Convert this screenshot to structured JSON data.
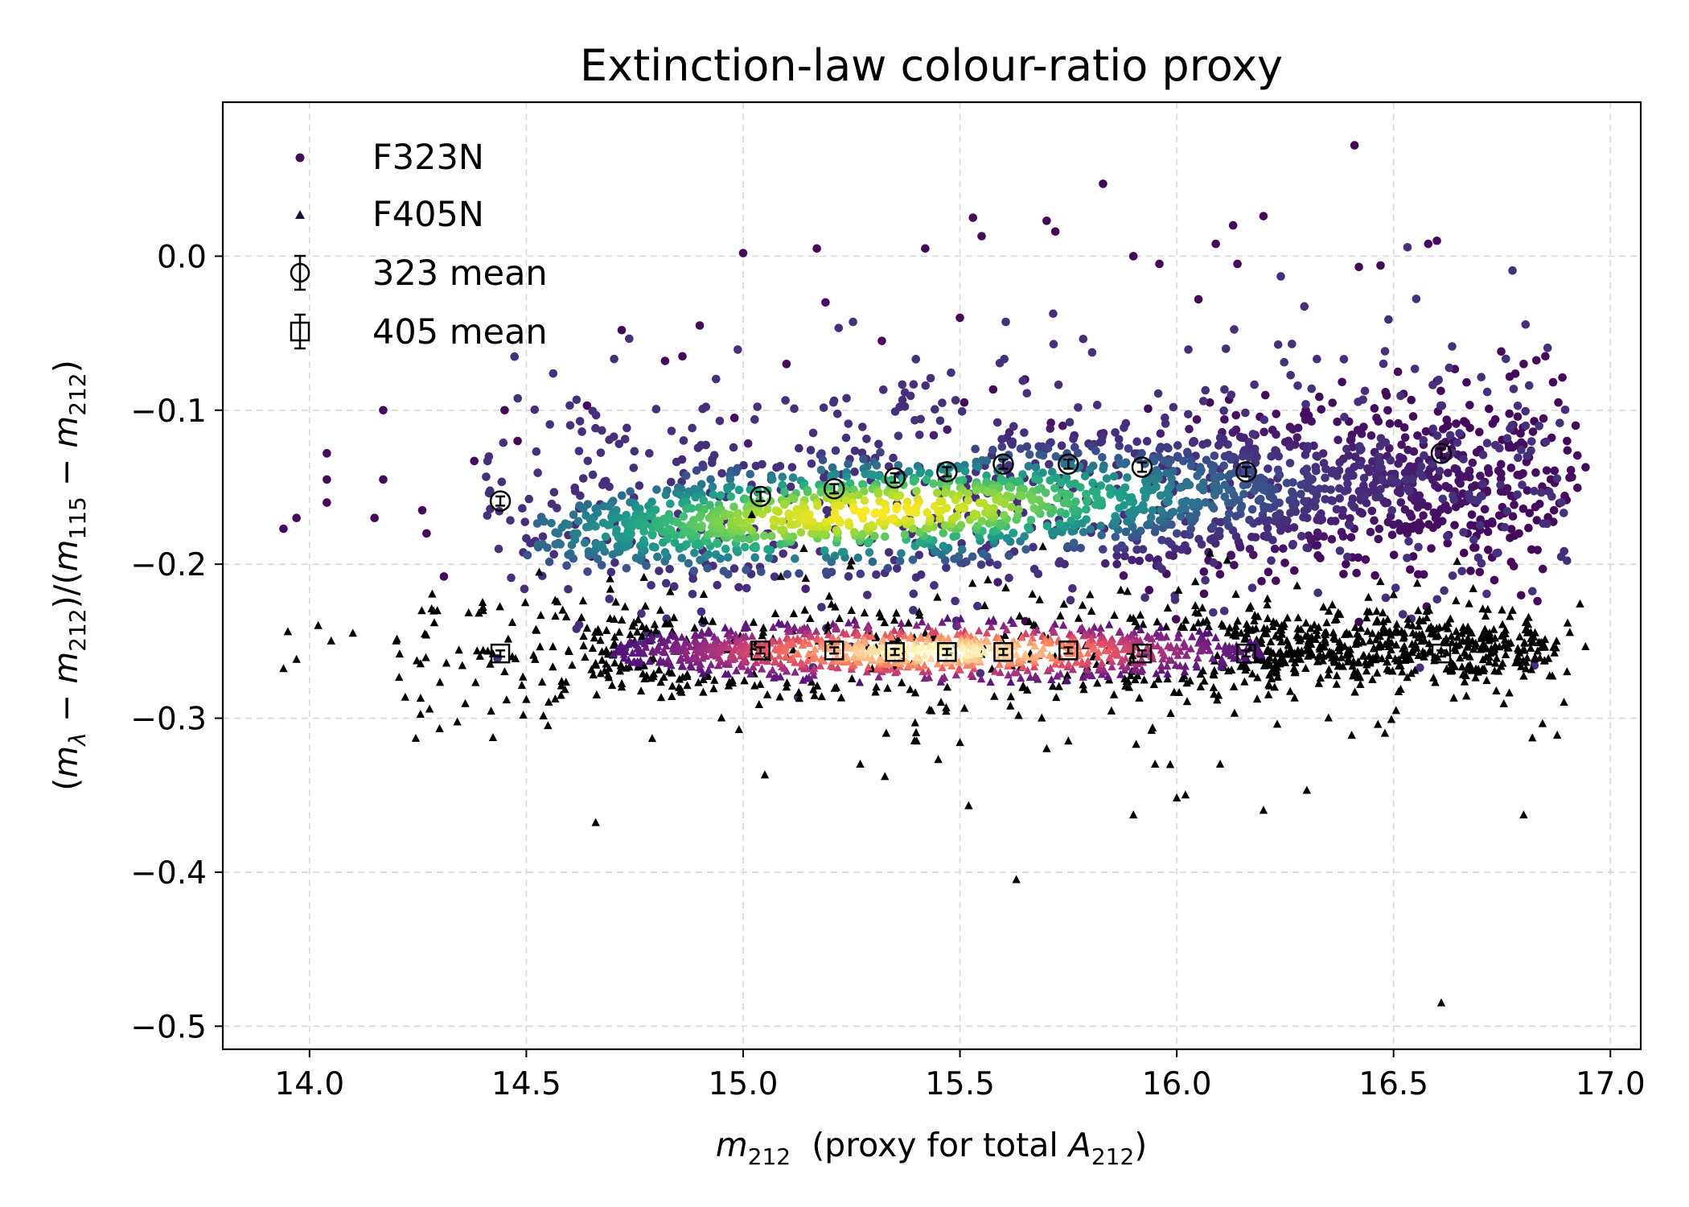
{
  "chart_data": {
    "type": "scatter",
    "title": "Extinction-law colour-ratio proxy",
    "xlabel": "m212  (proxy for total A212)",
    "ylabel": "(mλ − m212)/(m115 − m212)",
    "xlim": [
      13.8,
      17.07
    ],
    "ylim": [
      -0.515,
      0.1
    ],
    "x_ticks": [
      "14.0",
      "14.5",
      "15.0",
      "15.5",
      "16.0",
      "16.5",
      "17.0"
    ],
    "x_tick_values": [
      14.0,
      14.5,
      15.0,
      15.5,
      16.0,
      16.5,
      17.0
    ],
    "y_ticks": [
      "0.0",
      "−0.1",
      "−0.2",
      "−0.3",
      "−0.4",
      "−0.5"
    ],
    "y_tick_values": [
      0.0,
      -0.1,
      -0.2,
      -0.3,
      -0.4,
      -0.5
    ],
    "grid": true,
    "legend_position": "top-left",
    "colormaps": {
      "F323N": "viridis",
      "F405N": "magma"
    },
    "series": [
      {
        "name": "F323N",
        "marker": "circle",
        "kind": "density-colored scatter",
        "x_range": [
          13.94,
          16.92
        ],
        "core_mean_y": -0.155,
        "points": [
          [
            13.94,
            -0.177
          ],
          [
            13.97,
            -0.17
          ],
          [
            14.04,
            -0.128
          ],
          [
            14.04,
            -0.145
          ],
          [
            14.04,
            -0.16
          ],
          [
            14.15,
            -0.17
          ],
          [
            14.17,
            -0.1
          ],
          [
            14.17,
            -0.145
          ],
          [
            14.26,
            -0.165
          ],
          [
            14.27,
            -0.18
          ],
          [
            14.31,
            -0.208
          ],
          [
            14.38,
            -0.133
          ],
          [
            14.45,
            -0.1
          ],
          [
            14.48,
            -0.12
          ],
          [
            14.64,
            -0.097
          ],
          [
            14.72,
            -0.048
          ],
          [
            14.82,
            -0.068
          ],
          [
            14.86,
            -0.065
          ],
          [
            14.9,
            -0.045
          ],
          [
            14.98,
            -0.105
          ],
          [
            15.0,
            0.002
          ],
          [
            15.1,
            -0.07
          ],
          [
            15.17,
            0.005
          ],
          [
            15.19,
            -0.03
          ],
          [
            15.32,
            -0.055
          ],
          [
            15.42,
            0.005
          ],
          [
            15.5,
            -0.04
          ],
          [
            15.51,
            -0.095
          ],
          [
            15.53,
            0.025
          ],
          [
            15.55,
            0.013
          ],
          [
            15.65,
            -0.08
          ],
          [
            15.7,
            0.023
          ],
          [
            15.72,
            0.016
          ],
          [
            15.83,
            0.047
          ],
          [
            15.9,
            0.0
          ],
          [
            15.96,
            -0.005
          ],
          [
            16.05,
            -0.028
          ],
          [
            16.09,
            0.008
          ],
          [
            16.13,
            0.02
          ],
          [
            16.14,
            -0.005
          ],
          [
            16.2,
            0.026
          ],
          [
            16.41,
            0.072
          ],
          [
            16.42,
            -0.007
          ],
          [
            16.47,
            -0.006
          ],
          [
            16.58,
            0.008
          ],
          [
            16.6,
            0.01
          ],
          [
            16.8,
            -0.07
          ],
          [
            16.85,
            -0.065
          ],
          [
            16.88,
            -0.095
          ],
          [
            16.9,
            -0.12
          ],
          [
            16.92,
            -0.11
          ],
          [
            16.87,
            -0.165
          ],
          [
            16.39,
            -0.2
          ],
          [
            14.65,
            -0.195
          ]
        ]
      },
      {
        "name": "F405N",
        "marker": "triangle",
        "kind": "density-colored scatter",
        "x_range": [
          13.94,
          16.93
        ],
        "core_mean_y": -0.256,
        "points": [
          [
            13.94,
            -0.268
          ],
          [
            13.97,
            -0.262
          ],
          [
            13.95,
            -0.244
          ],
          [
            14.02,
            -0.24
          ],
          [
            14.05,
            -0.25
          ],
          [
            14.1,
            -0.245
          ],
          [
            14.2,
            -0.25
          ],
          [
            14.3,
            -0.307
          ],
          [
            14.45,
            -0.27
          ],
          [
            14.5,
            -0.288
          ],
          [
            14.55,
            -0.305
          ],
          [
            14.66,
            -0.368
          ],
          [
            14.72,
            -0.28
          ],
          [
            14.75,
            -0.25
          ],
          [
            14.95,
            -0.3
          ],
          [
            15.05,
            -0.337
          ],
          [
            15.1,
            -0.28
          ],
          [
            15.27,
            -0.33
          ],
          [
            15.33,
            -0.31
          ],
          [
            15.4,
            -0.315
          ],
          [
            15.45,
            -0.327
          ],
          [
            15.5,
            -0.316
          ],
          [
            15.52,
            -0.357
          ],
          [
            15.63,
            -0.405
          ],
          [
            15.7,
            -0.32
          ],
          [
            15.75,
            -0.315
          ],
          [
            15.9,
            -0.363
          ],
          [
            15.95,
            -0.33
          ],
          [
            16.0,
            -0.352
          ],
          [
            16.02,
            -0.35
          ],
          [
            16.1,
            -0.33
          ],
          [
            16.2,
            -0.36
          ],
          [
            16.3,
            -0.347
          ],
          [
            16.35,
            -0.3
          ],
          [
            16.48,
            -0.31
          ],
          [
            16.61,
            -0.485
          ],
          [
            16.8,
            -0.363
          ],
          [
            16.82,
            -0.313
          ],
          [
            16.9,
            -0.27
          ],
          [
            16.93,
            -0.226
          ],
          [
            16.5,
            -0.22
          ],
          [
            16.75,
            -0.23
          ],
          [
            15.42,
            -0.245
          ],
          [
            15.8,
            -0.22
          ],
          [
            16.05,
            -0.232
          ],
          [
            15.25,
            -0.198
          ],
          [
            15.02,
            -0.168
          ],
          [
            15.14,
            -0.19
          ]
        ]
      }
    ],
    "binned_means": [
      {
        "name": "323 mean",
        "marker": "open-circle",
        "x": [
          14.44,
          15.04,
          15.21,
          15.35,
          15.47,
          15.6,
          15.75,
          15.92,
          16.16,
          16.61
        ],
        "y": [
          -0.159,
          -0.156,
          -0.151,
          -0.144,
          -0.14,
          -0.135,
          -0.135,
          -0.137,
          -0.14,
          -0.128
        ],
        "err": [
          0.003,
          0.003,
          0.003,
          0.003,
          0.003,
          0.003,
          0.003,
          0.003,
          0.003,
          0.003
        ]
      },
      {
        "name": "405 mean",
        "marker": "open-square",
        "x": [
          14.44,
          15.04,
          15.21,
          15.35,
          15.47,
          15.6,
          15.75,
          15.92,
          16.16,
          16.61
        ],
        "y": [
          -0.258,
          -0.256,
          -0.256,
          -0.257,
          -0.257,
          -0.257,
          -0.256,
          -0.258,
          -0.258,
          -0.258
        ],
        "err": [
          0.002,
          0.002,
          0.002,
          0.002,
          0.002,
          0.002,
          0.002,
          0.002,
          0.002,
          0.002
        ]
      }
    ]
  }
}
